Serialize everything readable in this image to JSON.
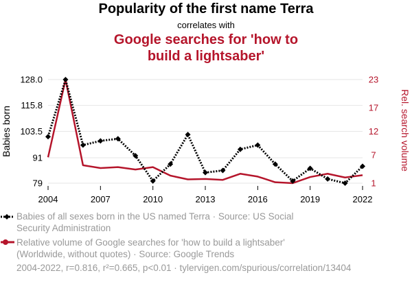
{
  "title": "Popularity of the first name Terra",
  "subtitle": "correlates with",
  "title2": "Google searches for 'how to build a lightsaber'",
  "colors": {
    "series1": "#000000",
    "series2": "#b5152b",
    "grid": "#e6e6e6",
    "legend_text": "#999999"
  },
  "chart_data": {
    "type": "line",
    "x": [
      2004,
      2005,
      2006,
      2007,
      2008,
      2009,
      2010,
      2011,
      2012,
      2013,
      2014,
      2015,
      2016,
      2017,
      2018,
      2019,
      2020,
      2021,
      2022
    ],
    "x_ticks": [
      "2004",
      "2007",
      "2010",
      "2013",
      "2016",
      "2019",
      "2022"
    ],
    "y_left": {
      "label": "Babies born",
      "ticks": [
        "128.0",
        "115.8",
        "103.5",
        "91",
        "79"
      ],
      "lim": [
        79,
        128
      ]
    },
    "y_right": {
      "label": "Rel. search volume",
      "ticks": [
        "23",
        "17",
        "12",
        "7",
        "1"
      ],
      "lim": [
        1,
        23
      ]
    },
    "series": [
      {
        "name": "Babies of all sexes born in the US named Terra",
        "axis": "left",
        "style": "dotted-diamond",
        "values": [
          101,
          128,
          97,
          99,
          100,
          92,
          80,
          88,
          102,
          84,
          85,
          95,
          97,
          88,
          80,
          86,
          81,
          79,
          87
        ]
      },
      {
        "name": "Google searches for 'how to build a lightsaber'",
        "axis": "right",
        "style": "solid",
        "values": [
          6.5,
          23,
          4.8,
          4.2,
          4.4,
          3.9,
          4.4,
          2.6,
          1.8,
          1.9,
          1.7,
          3.0,
          2.4,
          1.2,
          1.0,
          2.3,
          3.0,
          2.2,
          2.7
        ]
      }
    ]
  },
  "legend": {
    "item1": "Babies of all sexes born in the US named Terra · Source: US Social Security Administration",
    "item2": "Relative volume of Google searches for 'how to build a lightsaber' (Worldwide, without quotes) · Source: Google Trends"
  },
  "footer": "2004-2022, r=0.816, r²=0.665, p<0.01 · tylervigen.com/spurious/correlation/13404"
}
